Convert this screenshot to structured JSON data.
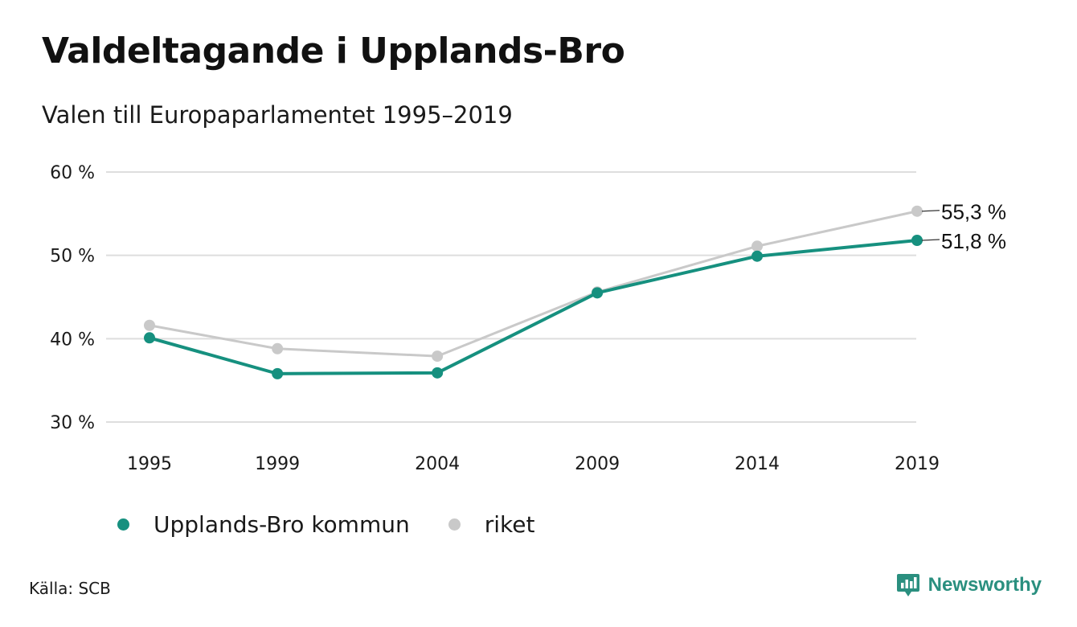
{
  "title": "Valdeltagande i Upplands-Bro",
  "subtitle": "Valen till Europaparlamentet 1995–2019",
  "source": "Källa: SCB",
  "brand": {
    "name": "Newsworthy",
    "icon": "newsworthy-logo-icon",
    "color": "#2a8f7f"
  },
  "legend": [
    {
      "label": "Upplands-Bro kommun",
      "color": "#16907f"
    },
    {
      "label": "riket",
      "color": "#c9c9c9"
    }
  ],
  "chart_data": {
    "type": "line",
    "x": [
      "1995",
      "1999",
      "2004",
      "2009",
      "2014",
      "2019"
    ],
    "x_values": [
      1995,
      1999,
      2004,
      2009,
      2014,
      2019
    ],
    "ylim": [
      30,
      60
    ],
    "yticks": [
      30,
      40,
      50,
      60
    ],
    "ytick_labels": [
      "30 %",
      "40 %",
      "50 %",
      "60 %"
    ],
    "grid": true,
    "legend_position": "bottom-left",
    "series": [
      {
        "name": "Upplands-Bro kommun",
        "color": "#16907f",
        "values": [
          40.1,
          35.8,
          35.9,
          45.5,
          49.9,
          51.8
        ],
        "end_label": "51,8 %"
      },
      {
        "name": "riket",
        "color": "#c9c9c9",
        "values": [
          41.6,
          38.8,
          37.9,
          45.6,
          51.1,
          55.3
        ],
        "end_label": "55,3 %"
      }
    ]
  }
}
